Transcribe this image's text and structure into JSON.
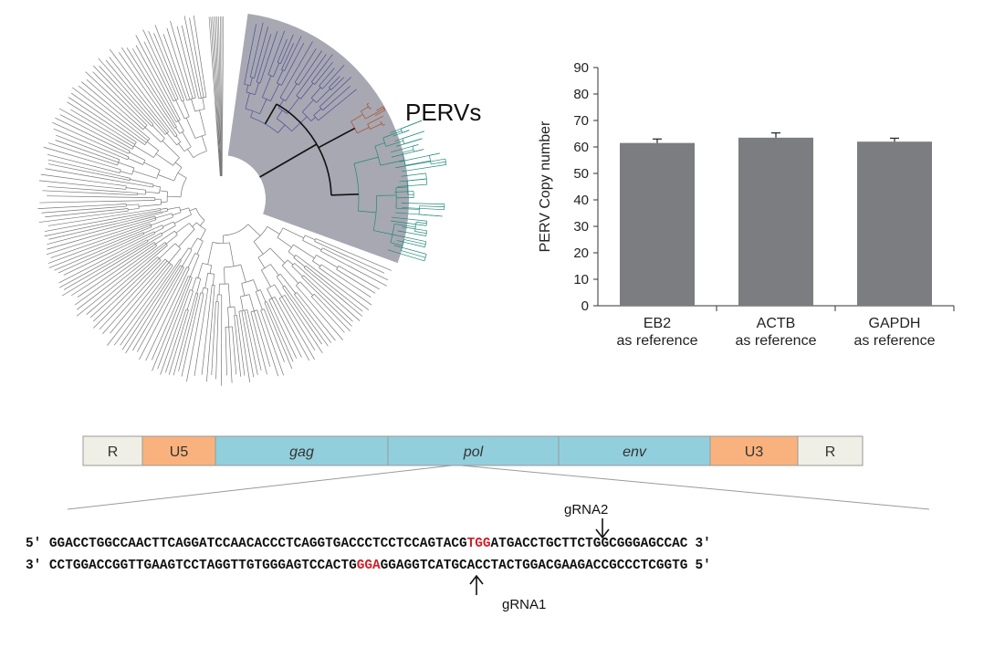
{
  "tree": {
    "label": "PERVs",
    "clade_colors": {
      "fill": "#a7a8b2",
      "blue": "#4a4f96",
      "orange": "#b04a24",
      "teal": "#1f8a7a",
      "black": "#111111",
      "gray": "#777777"
    }
  },
  "chart_data": {
    "type": "bar",
    "categories": [
      "EB2 as reference",
      "ACTB as reference",
      "GAPDH as reference"
    ],
    "category_lines": [
      [
        "EB2",
        "as reference"
      ],
      [
        "ACTB",
        "as reference"
      ],
      [
        "GAPDH",
        "as reference"
      ]
    ],
    "values": [
      61.5,
      63.5,
      62
    ],
    "errors": [
      1.5,
      1.8,
      1.3
    ],
    "ylabel": "PERV Copy number",
    "xlabel": "",
    "ylim": [
      0,
      90
    ],
    "yticks": [
      0,
      10,
      20,
      30,
      40,
      50,
      60,
      70,
      80,
      90
    ],
    "bar_color": "#7b7d80",
    "grid": false
  },
  "genome": {
    "segments": [
      {
        "label": "R",
        "color": "#efefe6",
        "italic": false
      },
      {
        "label": "U5",
        "color": "#f9b27d",
        "italic": false
      },
      {
        "label": "gag",
        "color": "#92cfdc",
        "italic": true
      },
      {
        "label": "pol",
        "color": "#92cfdc",
        "italic": true
      },
      {
        "label": "env",
        "color": "#92cfdc",
        "italic": true
      },
      {
        "label": "U3",
        "color": "#f9b27d",
        "italic": false
      },
      {
        "label": "R",
        "color": "#efefe6",
        "italic": false
      }
    ]
  },
  "sequence": {
    "top_prefix": "5′",
    "top_pre": "GGACCTGGCCAACTTCAGGATCCAACACCCTCAGGTGACCCTCCTCCAGTACG",
    "top_pam": "TGG",
    "top_post": "ATGACCTGCTTCTGGCGGGAGCCAC",
    "top_suffix": "3′",
    "bot_prefix": "3′",
    "bot_pre": "CCTGGACCGGTTGAAGTCCTAGGTTGTGGGAGTCCACTG",
    "bot_pam": "GGA",
    "bot_post": "GGAGGTCATGCACCTACTGGACGAAGACCGCCCTCGGTG",
    "bot_suffix": "5′",
    "pam_color": "#d0202a",
    "grna2": "gRNA2",
    "grna1": "gRNA1"
  }
}
